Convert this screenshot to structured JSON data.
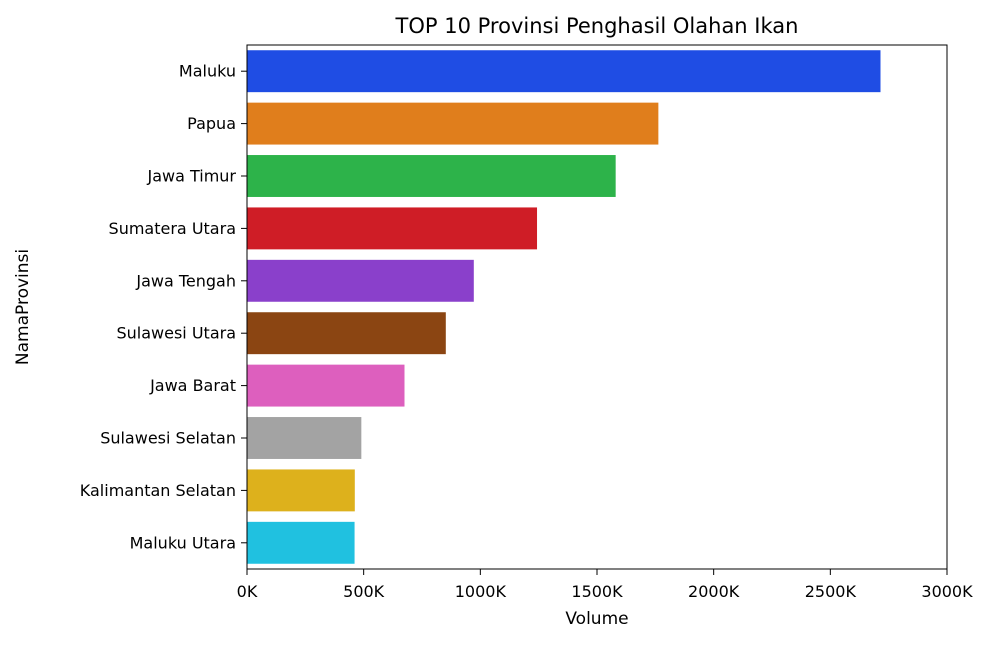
{
  "chart_data": {
    "type": "bar",
    "orientation": "horizontal",
    "title": "TOP 10 Provinsi Penghasil Olahan Ikan",
    "xlabel": "Volume",
    "ylabel": "NamaProvinsi",
    "categories": [
      "Maluku",
      "Papua",
      "Jawa Timur",
      "Sumatera Utara",
      "Jawa Tengah",
      "Sulawesi Utara",
      "Jawa Barat",
      "Sulawesi Selatan",
      "Kalimantan Selatan",
      "Maluku Utara"
    ],
    "values": [
      2715000,
      1763000,
      1580000,
      1243000,
      972000,
      852000,
      675000,
      490000,
      462000,
      461000
    ],
    "colors": [
      "#1f4de4",
      "#e07e1c",
      "#2db34a",
      "#cf1d26",
      "#8a40cb",
      "#8b4512",
      "#dd5fbe",
      "#a3a3a3",
      "#ddb11c",
      "#20c1e0"
    ],
    "xlim": [
      0,
      3000000
    ],
    "xticks": [
      0,
      500000,
      1000000,
      1500000,
      2000000,
      2500000,
      3000000
    ],
    "xtick_labels": [
      "0K",
      "500K",
      "1000K",
      "1500K",
      "2000K",
      "2500K",
      "3000K"
    ],
    "grid": false,
    "legend": false
  }
}
